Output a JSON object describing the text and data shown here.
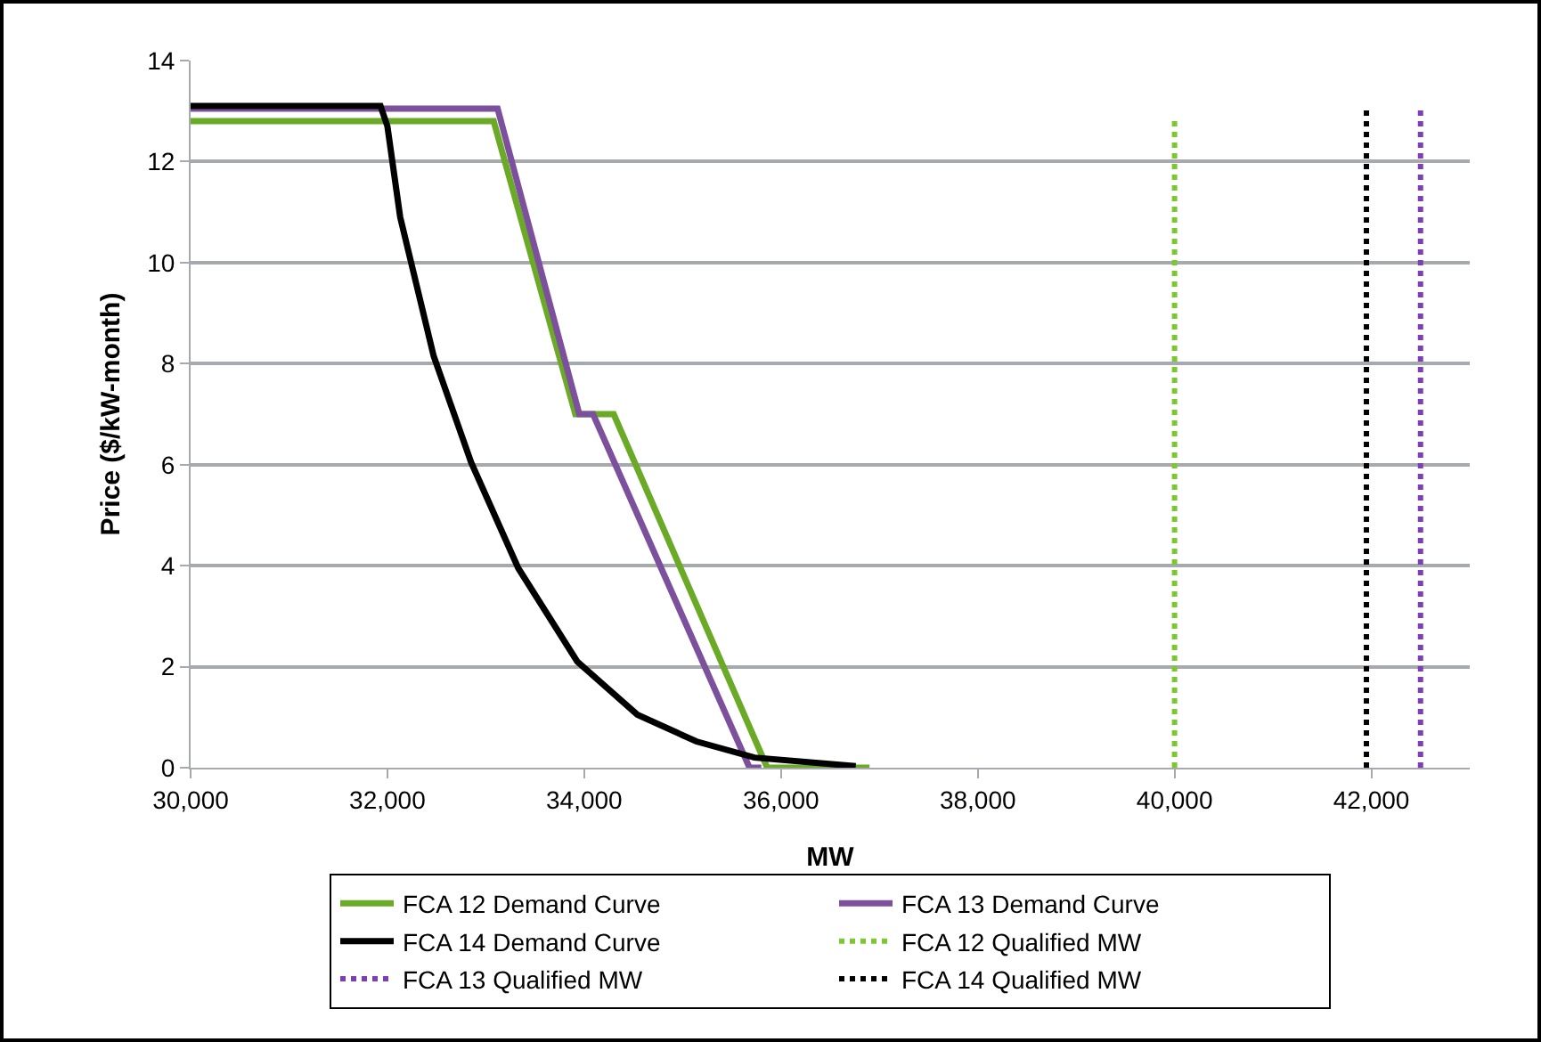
{
  "chart_data": {
    "type": "line",
    "xlabel": "MW",
    "ylabel": "Price ($/kW-month)",
    "xlim": [
      30000,
      43000
    ],
    "xticks": [
      {
        "value": 30000,
        "label": "30,000"
      },
      {
        "value": 32000,
        "label": "32,000"
      },
      {
        "value": 34000,
        "label": "34,000"
      },
      {
        "value": 36000,
        "label": "36,000"
      },
      {
        "value": 38000,
        "label": "38,000"
      },
      {
        "value": 40000,
        "label": "40,000"
      },
      {
        "value": 42000,
        "label": "42,000"
      }
    ],
    "ylim": [
      0,
      14
    ],
    "yticks": [
      0,
      2,
      4,
      6,
      8,
      10,
      12,
      14
    ],
    "grid": "y",
    "legend": "bottom",
    "marker": "none",
    "series": [
      {
        "name": "FCA 12 Demand Curve",
        "color": "#6aaa26",
        "line_style": "solid",
        "x": [
          30000,
          33080,
          33910,
          34300,
          35860,
          36900
        ],
        "values": [
          12.8,
          12.8,
          7,
          7,
          0,
          0
        ]
      },
      {
        "name": "FCA 13 Demand Curve",
        "color": "#7c509c",
        "line_style": "solid",
        "x": [
          30000,
          33120,
          33950,
          34090,
          35680,
          35800
        ],
        "values": [
          13.05,
          13.05,
          7,
          7,
          0,
          0
        ]
      },
      {
        "name": "FCA 14 Demand Curve",
        "color": "#000000",
        "line_style": "solid",
        "x": [
          30000,
          31930,
          32000,
          32130,
          32470,
          32850,
          33330,
          33930,
          34540,
          35140,
          35730,
          36760
        ],
        "values": [
          13.1,
          13.1,
          12.7,
          10.9,
          8.15,
          6.05,
          3.95,
          2.1,
          1.05,
          0.52,
          0.2,
          0.03
        ]
      },
      {
        "name": "FCA 12 Qualified MW",
        "color": "#7dc832",
        "line_style": "dotted",
        "x": [
          40000,
          40000
        ],
        "values": [
          0,
          12.8
        ]
      },
      {
        "name": "FCA 13 Qualified MW",
        "color": "#7e3fb5",
        "line_style": "dotted",
        "x": [
          42500,
          42500
        ],
        "values": [
          0,
          13.1
        ]
      },
      {
        "name": "FCA 14 Qualified MW",
        "color": "#000000",
        "line_style": "dotted",
        "x": [
          41950,
          41950
        ],
        "values": [
          0,
          13.1
        ]
      }
    ]
  }
}
